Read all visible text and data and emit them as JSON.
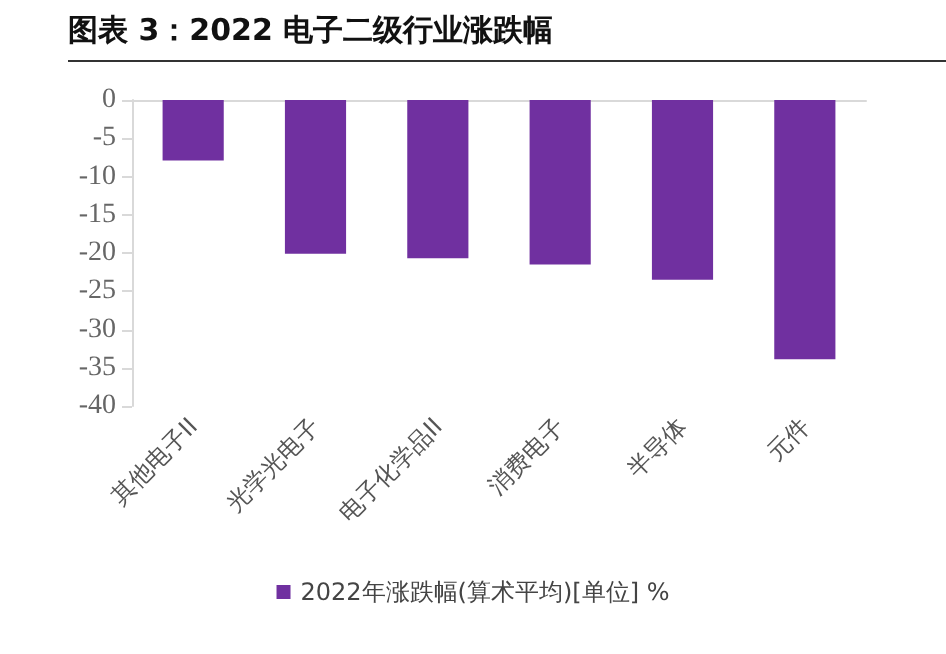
{
  "chart_data": {
    "type": "bar",
    "title": "图表 3：2022 电子二级行业涨跌幅",
    "categories": [
      "其他电子II",
      "光学光电子",
      "电子化学品II",
      "消费电子",
      "半导体",
      "元件"
    ],
    "series": [
      {
        "name": "2022年涨跌幅(算术平均)[单位] %",
        "color": "#7030a0",
        "values": [
          -7.9,
          -20.1,
          -20.7,
          -21.5,
          -23.5,
          -33.9
        ]
      }
    ],
    "ylim": [
      -40,
      0
    ],
    "yticks": [
      0,
      -5,
      -10,
      -15,
      -20,
      -25,
      -30,
      -35,
      -40
    ],
    "grid": false,
    "legend": "bottom"
  }
}
